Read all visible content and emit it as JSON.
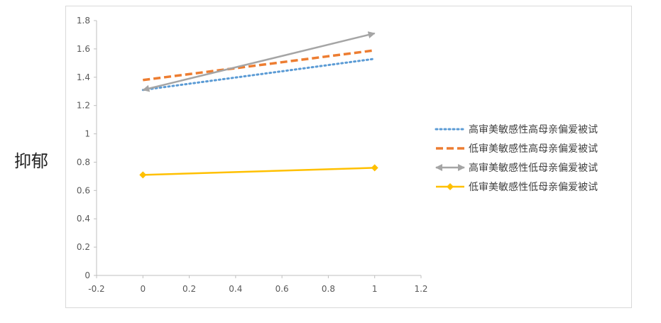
{
  "chart_data": {
    "type": "line",
    "title": "",
    "xlabel": "",
    "ylabel": "抑郁",
    "xlim": [
      -0.2,
      1.2
    ],
    "ylim": [
      0,
      1.8
    ],
    "xticks": [
      -0.2,
      0,
      0.2,
      0.4,
      0.6,
      0.8,
      1,
      1.2
    ],
    "yticks": [
      0,
      0.2,
      0.4,
      0.6,
      0.8,
      1,
      1.2,
      1.4,
      1.6,
      1.8
    ],
    "grid": false,
    "legend_position": "right",
    "series": [
      {
        "name": "高审美敏感性高母亲偏爱被试",
        "x": [
          0,
          1
        ],
        "y": [
          1.31,
          1.53
        ],
        "color": "#5b9bd5",
        "style": "dotted",
        "marker": "none"
      },
      {
        "name": "低审美敏感性高母亲偏爱被试",
        "x": [
          0,
          1
        ],
        "y": [
          1.38,
          1.59
        ],
        "color": "#ed7d31",
        "style": "dashed",
        "marker": "none"
      },
      {
        "name": "高审美敏感性低母亲偏爱被试",
        "x": [
          0,
          1
        ],
        "y": [
          1.31,
          1.71
        ],
        "color": "#a5a5a5",
        "style": "solid",
        "marker": "arrow"
      },
      {
        "name": "低审美敏感性低母亲偏爱被试",
        "x": [
          0,
          1
        ],
        "y": [
          0.71,
          0.76
        ],
        "color": "#ffc000",
        "style": "solid",
        "marker": "diamond"
      }
    ]
  }
}
